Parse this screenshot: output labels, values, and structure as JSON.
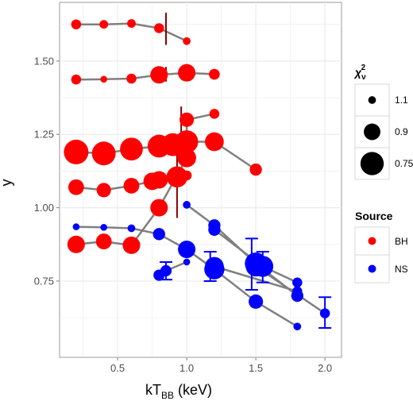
{
  "chart_data": {
    "type": "scatter",
    "xlabel": "kT",
    "xlabel_sub": "BB",
    "xlabel_unit": " (keV)",
    "ylabel": "y",
    "xlim": [
      0.08,
      2.12
    ],
    "ylim": [
      0.49,
      1.7
    ],
    "x_ticks": [
      {
        "v": 0.5,
        "label": "0.5"
      },
      {
        "v": 1.0,
        "label": "1.0"
      },
      {
        "v": 1.5,
        "label": "1.5"
      },
      {
        "v": 2.0,
        "label": "2.0"
      }
    ],
    "y_ticks": [
      {
        "v": 0.75,
        "label": "0.75"
      },
      {
        "v": 1.0,
        "label": "1.00"
      },
      {
        "v": 1.25,
        "label": "1.25"
      },
      {
        "v": 1.5,
        "label": "1.50"
      }
    ],
    "grid": true,
    "colors": {
      "BH": "#ff0000",
      "NS": "#0000ff",
      "line": "#7f7f7f",
      "bh_error": "#8b0000",
      "ns_error": "#0000ff",
      "panel": "#ffffff",
      "grid": "#ebebeb"
    },
    "size_legend": {
      "title": "χ",
      "title_sub": "ν",
      "title_sup": "2",
      "entries": [
        {
          "label": "1.1",
          "chi2": 1.1
        },
        {
          "label": "0.9",
          "chi2": 0.9
        },
        {
          "label": "0.75",
          "chi2": 0.75
        }
      ]
    },
    "color_legend": {
      "title": "Source",
      "entries": [
        {
          "label": "BH",
          "source": "BH"
        },
        {
          "label": "NS",
          "source": "NS"
        }
      ]
    },
    "series": [
      {
        "source": "BH",
        "points": [
          {
            "x": 0.2,
            "y": 1.625,
            "chi2": 1.05
          },
          {
            "x": 0.4,
            "y": 1.625,
            "chi2": 1.08
          },
          {
            "x": 0.6,
            "y": 1.628,
            "chi2": 1.08
          },
          {
            "x": 0.8,
            "y": 1.612,
            "chi2": 1.05
          },
          {
            "x": 1.0,
            "y": 1.568,
            "chi2": 1.1
          }
        ]
      },
      {
        "source": "BH",
        "points": [
          {
            "x": 0.2,
            "y": 1.437,
            "chi2": 1.05
          },
          {
            "x": 0.4,
            "y": 1.438,
            "chi2": 1.12
          },
          {
            "x": 0.6,
            "y": 1.44,
            "chi2": 1.05
          },
          {
            "x": 0.8,
            "y": 1.453,
            "chi2": 0.88
          },
          {
            "x": 1.0,
            "y": 1.46,
            "chi2": 0.88
          },
          {
            "x": 1.2,
            "y": 1.455,
            "chi2": 1.03
          }
        ]
      },
      {
        "source": "BH",
        "points": [
          {
            "x": 0.2,
            "y": 1.19,
            "chi2": 0.72
          },
          {
            "x": 0.4,
            "y": 1.185,
            "chi2": 0.74
          },
          {
            "x": 0.6,
            "y": 1.2,
            "chi2": 0.76
          },
          {
            "x": 0.8,
            "y": 1.21,
            "chi2": 0.76
          },
          {
            "x": 0.9,
            "y": 1.215,
            "chi2": 0.76
          },
          {
            "x": 1.0,
            "y": 1.225,
            "chi2": 0.76
          },
          {
            "x": 1.2,
            "y": 1.225,
            "chi2": 0.85
          },
          {
            "x": 1.5,
            "y": 1.13,
            "chi2": 1.0
          }
        ]
      },
      {
        "source": "BH",
        "points": [
          {
            "x": 0.2,
            "y": 1.07,
            "chi2": 0.92
          },
          {
            "x": 0.4,
            "y": 1.06,
            "chi2": 0.95
          },
          {
            "x": 0.6,
            "y": 1.075,
            "chi2": 0.92
          },
          {
            "x": 0.75,
            "y": 1.09,
            "chi2": 0.88
          },
          {
            "x": 0.8,
            "y": 1.095,
            "chi2": 0.88
          },
          {
            "x": 0.93,
            "y": 1.105,
            "chi2": 0.8
          },
          {
            "x": 1.0,
            "y": 1.11,
            "chi2": 1.05
          }
        ]
      },
      {
        "source": "BH",
        "points": [
          {
            "x": 0.2,
            "y": 0.875,
            "chi2": 0.88
          },
          {
            "x": 0.4,
            "y": 0.885,
            "chi2": 0.92
          },
          {
            "x": 0.6,
            "y": 0.872,
            "chi2": 0.88
          },
          {
            "x": 0.8,
            "y": 1.0,
            "chi2": 0.88
          },
          {
            "x": 1.0,
            "y": 1.17,
            "chi2": 0.85
          },
          {
            "x": 1.0,
            "y": 1.3,
            "chi2": 0.95
          },
          {
            "x": 1.2,
            "y": 1.32,
            "chi2": 1.05
          }
        ]
      },
      {
        "source": "NS",
        "points": [
          {
            "x": 0.2,
            "y": 0.935,
            "chi2": 1.12
          },
          {
            "x": 0.4,
            "y": 0.933,
            "chi2": 1.12
          },
          {
            "x": 0.6,
            "y": 0.93,
            "chi2": 1.1
          },
          {
            "x": 0.8,
            "y": 0.91,
            "chi2": 1.0
          },
          {
            "x": 1.0,
            "y": 0.858,
            "chi2": 0.88
          },
          {
            "x": 1.2,
            "y": 0.79,
            "chi2": 0.82
          },
          {
            "x": 1.5,
            "y": 0.68,
            "chi2": 0.95
          },
          {
            "x": 1.8,
            "y": 0.595,
            "chi2": 1.1
          }
        ]
      },
      {
        "source": "NS",
        "points": [
          {
            "x": 0.8,
            "y": 0.77,
            "chi2": 1.02
          },
          {
            "x": 0.85,
            "y": 0.785,
            "chi2": 1.02
          },
          {
            "x": 1.0,
            "y": 0.815,
            "chi2": 1.12
          }
        ]
      },
      {
        "source": "NS",
        "points": [
          {
            "x": 1.0,
            "y": 1.01,
            "chi2": 1.1
          },
          {
            "x": 1.2,
            "y": 0.94,
            "chi2": 1.0
          },
          {
            "x": 1.5,
            "y": 0.81,
            "chi2": 0.78
          },
          {
            "x": 1.8,
            "y": 0.7,
            "chi2": 1.0
          }
        ]
      },
      {
        "source": "NS",
        "points": [
          {
            "x": 1.2,
            "y": 0.925,
            "chi2": 1.0
          },
          {
            "x": 1.55,
            "y": 0.8,
            "chi2": 0.8
          },
          {
            "x": 1.8,
            "y": 0.745,
            "chi2": 1.05
          }
        ]
      },
      {
        "source": "NS",
        "points": [
          {
            "x": 1.2,
            "y": 0.8,
            "chi2": 0.85
          },
          {
            "x": 1.8,
            "y": 0.715,
            "chi2": 1.05
          }
        ]
      },
      {
        "source": "NS",
        "points": [
          {
            "x": 1.5,
            "y": 0.8,
            "chi2": 0.82
          },
          {
            "x": 2.0,
            "y": 0.64,
            "chi2": 1.05
          }
        ]
      }
    ],
    "error_bars": [
      {
        "source": "BH",
        "x": 0.85,
        "y_low": 1.555,
        "y_high": 1.665
      },
      {
        "source": "BH",
        "x": 0.85,
        "y_low": 1.43,
        "y_high": 1.48
      },
      {
        "source": "BH",
        "x": 0.96,
        "y_low": 1.2,
        "y_high": 1.345
      },
      {
        "source": "BH",
        "x": 0.77,
        "y_low": 1.07,
        "y_high": 1.11
      },
      {
        "source": "BH",
        "x": 0.93,
        "y_low": 0.965,
        "y_high": 1.245
      },
      {
        "source": "NS",
        "x": 0.85,
        "y_low": 0.755,
        "y_high": 0.815
      },
      {
        "source": "NS",
        "x": 1.17,
        "y_low": 0.75,
        "y_high": 0.85
      },
      {
        "source": "NS",
        "x": 1.47,
        "y_low": 0.72,
        "y_high": 0.895
      },
      {
        "source": "NS",
        "x": 1.55,
        "y_low": 0.745,
        "y_high": 0.85
      },
      {
        "source": "NS",
        "x": 2.0,
        "y_low": 0.59,
        "y_high": 0.695
      }
    ]
  }
}
